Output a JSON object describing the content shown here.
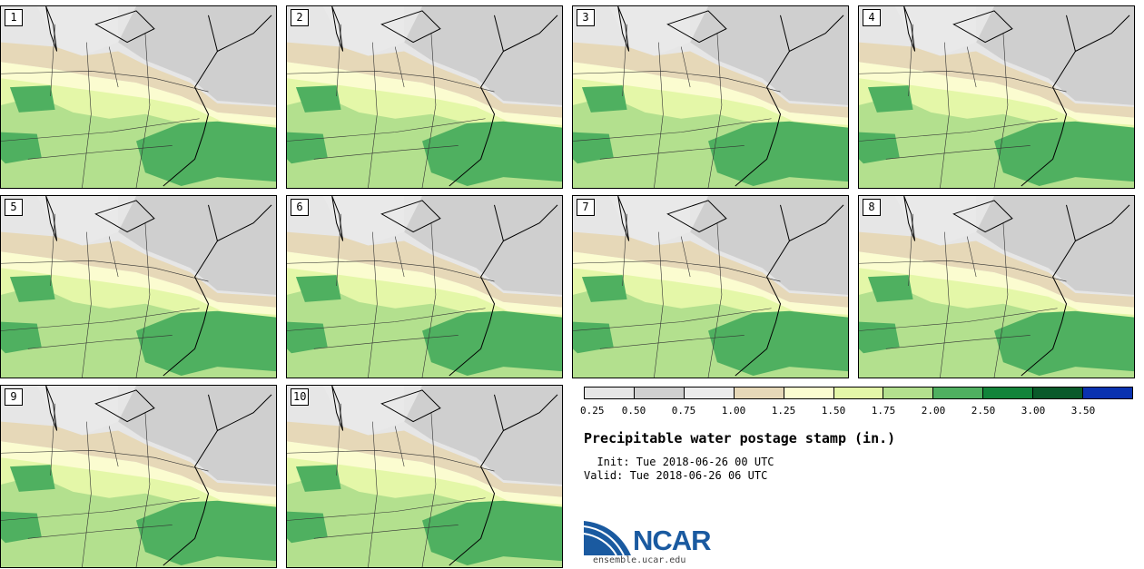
{
  "stamps": [
    {
      "label": "1"
    },
    {
      "label": "2"
    },
    {
      "label": "3"
    },
    {
      "label": "4"
    },
    {
      "label": "5"
    },
    {
      "label": "6"
    },
    {
      "label": "7"
    },
    {
      "label": "8"
    },
    {
      "label": "9"
    },
    {
      "label": "10"
    }
  ],
  "colorbar": {
    "colors": [
      "#e6e6e6",
      "#cfcfcf",
      "#ececec",
      "#e6d8b8",
      "#fbfcd0",
      "#e4f7a8",
      "#b3e08e",
      "#4fb060",
      "#12843a",
      "#0a5a2a",
      "#0a32b0"
    ],
    "labels": [
      "0.25",
      "0.50",
      "0.75",
      "1.00",
      "1.25",
      "1.50",
      "1.75",
      "2.00",
      "2.50",
      "3.00",
      "3.50"
    ]
  },
  "title": "Precipitable water postage stamp (in.)",
  "init": "  Init: Tue 2018-06-26 00 UTC",
  "valid": "Valid: Tue 2018-06-26 06 UTC",
  "logo": {
    "text": "NCAR",
    "site": "ensemble.ucar.edu"
  }
}
